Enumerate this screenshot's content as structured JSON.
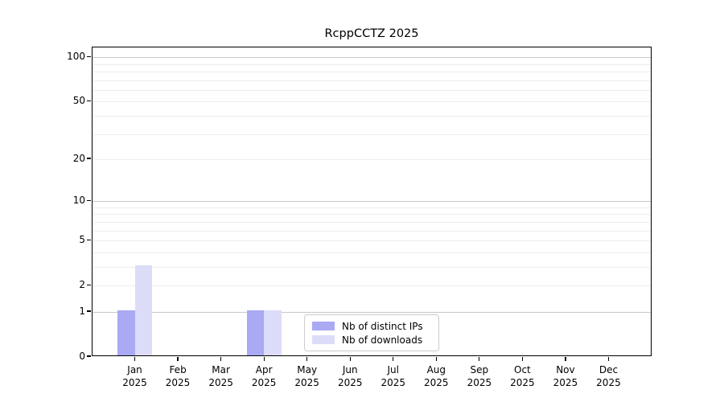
{
  "chart_data": {
    "type": "bar",
    "title": "RcppCCTZ 2025",
    "categories": [
      "Jan",
      "Feb",
      "Mar",
      "Apr",
      "May",
      "Jun",
      "Jul",
      "Aug",
      "Sep",
      "Oct",
      "Nov",
      "Dec"
    ],
    "x_year_label": "2025",
    "series": [
      {
        "name": "Nb of distinct IPs",
        "color": "#a9a9f4",
        "values": [
          1,
          0,
          0,
          1,
          0,
          0,
          0,
          0,
          0,
          0,
          0,
          0
        ]
      },
      {
        "name": "Nb of downloads",
        "color": "#dcdcf9",
        "values": [
          3,
          0,
          0,
          1,
          0,
          0,
          0,
          0,
          0,
          0,
          0,
          0
        ]
      }
    ],
    "yscale": "log1p",
    "y_top_value": 116.4,
    "yticks": [
      0,
      1,
      2,
      5,
      10,
      20,
      50,
      100
    ],
    "y_major_gridlines": [
      1,
      10,
      100
    ],
    "y_minor_gridlines": [
      2,
      3,
      4,
      5,
      6,
      7,
      8,
      9,
      20,
      30,
      40,
      50,
      60,
      70,
      80,
      90
    ],
    "ylim": [
      0,
      116.4
    ],
    "grid": "on",
    "legend_position": "bottom-center-inside"
  }
}
